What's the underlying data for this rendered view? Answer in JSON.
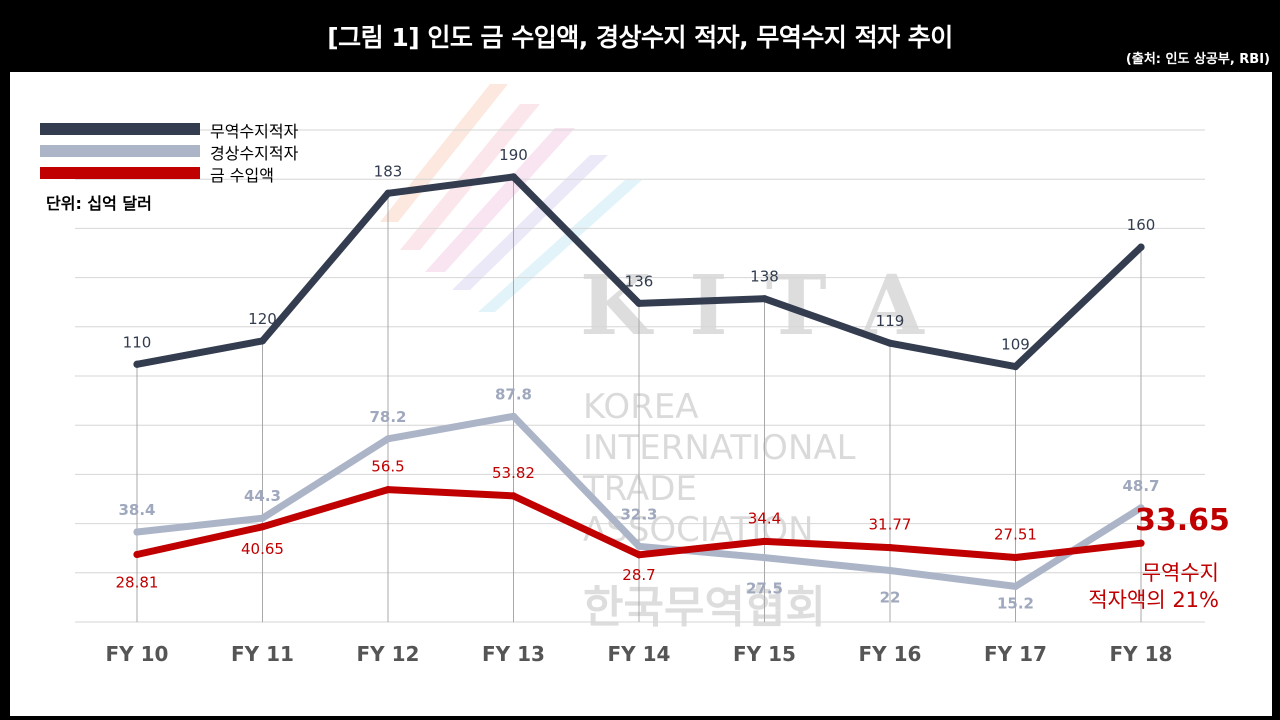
{
  "header": {
    "title": "[그림 1] 인도 금 수입액, 경상수지 적자, 무역수지 적자 추이",
    "source": "(출처: 인도 상공부, RBI)"
  },
  "unit_label": "단위: 십억 달러",
  "callout": {
    "value": "33.65",
    "note_line1": "무역수지",
    "note_line2": "적자액의 21%"
  },
  "watermark": {
    "logo": "KITA",
    "line1": "KOREA",
    "line2": "INTERNATIONAL",
    "line3": "TRADE",
    "line4": "ASSOCIATION",
    "korean": "한국무역협회"
  },
  "colors": {
    "trade": "#333d4f",
    "current": "#acb5c8",
    "gold": "#c00000"
  },
  "chart_data": {
    "type": "line",
    "title": "[그림 1] 인도 금 수입액, 경상수지 적자, 무역수지 적자 추이",
    "categories": [
      "FY 10",
      "FY 11",
      "FY 12",
      "FY 13",
      "FY 14",
      "FY 15",
      "FY 16",
      "FY 17",
      "FY 18"
    ],
    "series": [
      {
        "name": "무역수지적자",
        "values": [
          110,
          120,
          183,
          190,
          136,
          138,
          119,
          109,
          160
        ],
        "labels": [
          "110",
          "120",
          "183",
          "190",
          "136",
          "138",
          "119",
          "109",
          "160"
        ]
      },
      {
        "name": "경상수지적자",
        "values": [
          38.4,
          44.3,
          78.2,
          87.8,
          32.3,
          27.5,
          22,
          15.2,
          48.7
        ],
        "labels": [
          "38.4",
          "44.3",
          "78.2",
          "87.8",
          "32.3",
          "27.5",
          "22",
          "15.2",
          "48.7"
        ]
      },
      {
        "name": "금 수입액",
        "values": [
          28.81,
          40.65,
          56.5,
          53.82,
          28.7,
          34.4,
          31.77,
          27.51,
          33.65
        ],
        "labels": [
          "28.81",
          "40.65",
          "56.5",
          "53.82",
          "28.7",
          "34.4",
          "31.77",
          "27.51",
          ""
        ]
      }
    ],
    "ylim": [
      0,
      210
    ],
    "grid": true,
    "legend": "top-left"
  }
}
